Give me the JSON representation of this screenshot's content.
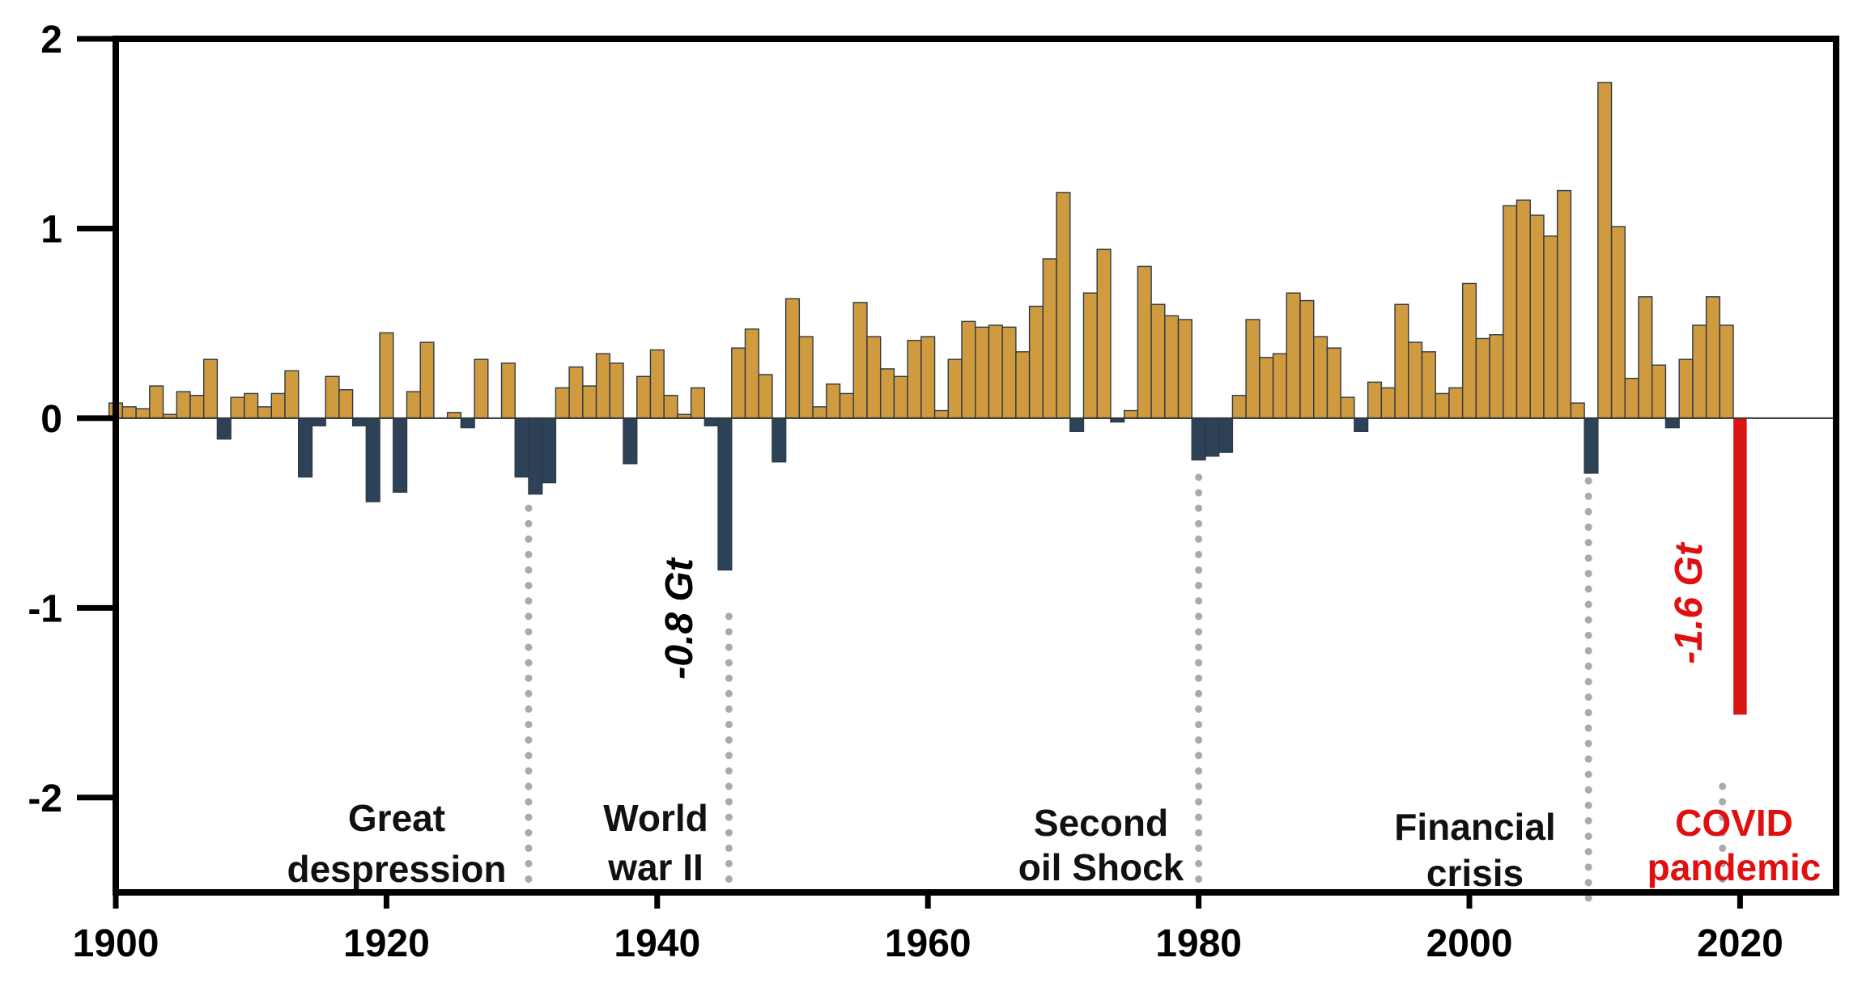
{
  "chart_data": {
    "type": "bar",
    "title": "",
    "xlabel": "",
    "ylabel": "",
    "xlim": [
      1900,
      2027
    ],
    "ylim": [
      -2.5,
      2
    ],
    "x_ticks": [
      "1900",
      "1920",
      "1940",
      "1960",
      "1980",
      "2000",
      "2020"
    ],
    "y_ticks": [
      "2",
      "1",
      "0",
      "-1",
      "-2"
    ],
    "grid": false,
    "colors": {
      "positive": "#d09a3e",
      "negative": "#2e4257",
      "covid": "#d81515",
      "outline": "#2a3a4a",
      "dotted_line": "#aaaaaa"
    },
    "x": [
      1900,
      1901,
      1902,
      1903,
      1904,
      1905,
      1906,
      1907,
      1908,
      1909,
      1910,
      1911,
      1912,
      1913,
      1914,
      1915,
      1916,
      1917,
      1918,
      1919,
      1920,
      1921,
      1922,
      1923,
      1924,
      1925,
      1926,
      1927,
      1928,
      1929,
      1930,
      1931,
      1932,
      1933,
      1934,
      1935,
      1936,
      1937,
      1938,
      1939,
      1940,
      1941,
      1942,
      1943,
      1944,
      1945,
      1946,
      1947,
      1948,
      1949,
      1950,
      1951,
      1952,
      1953,
      1954,
      1955,
      1956,
      1957,
      1958,
      1959,
      1960,
      1961,
      1962,
      1963,
      1964,
      1965,
      1966,
      1967,
      1968,
      1969,
      1970,
      1971,
      1972,
      1973,
      1974,
      1975,
      1976,
      1977,
      1978,
      1979,
      1980,
      1981,
      1982,
      1983,
      1984,
      1985,
      1986,
      1987,
      1988,
      1989,
      1990,
      1991,
      1992,
      1993,
      1994,
      1995,
      1996,
      1997,
      1998,
      1999,
      2000,
      2001,
      2002,
      2003,
      2004,
      2005,
      2006,
      2007,
      2008,
      2009,
      2010,
      2011,
      2012,
      2013,
      2014,
      2015,
      2016,
      2017,
      2018,
      2019,
      2020
    ],
    "values": [
      0.08,
      0.06,
      0.05,
      0.17,
      0.02,
      0.14,
      0.12,
      0.31,
      -0.11,
      0.11,
      0.13,
      0.06,
      0.13,
      0.25,
      -0.31,
      -0.04,
      0.22,
      0.15,
      -0.04,
      -0.44,
      0.45,
      -0.39,
      0.14,
      0.4,
      0.0,
      0.03,
      -0.05,
      0.31,
      0.0,
      0.29,
      -0.31,
      -0.4,
      -0.34,
      0.16,
      0.27,
      0.17,
      0.34,
      0.29,
      -0.24,
      0.22,
      0.36,
      0.12,
      0.02,
      0.16,
      -0.04,
      -0.8,
      0.37,
      0.47,
      0.23,
      -0.23,
      0.63,
      0.43,
      0.06,
      0.18,
      0.13,
      0.61,
      0.43,
      0.26,
      0.22,
      0.41,
      0.43,
      0.04,
      0.31,
      0.51,
      0.48,
      0.49,
      0.48,
      0.35,
      0.59,
      0.84,
      1.19,
      -0.07,
      0.66,
      0.89,
      -0.02,
      0.04,
      0.8,
      0.6,
      0.54,
      0.52,
      -0.22,
      -0.2,
      -0.18,
      0.12,
      0.52,
      0.32,
      0.34,
      0.66,
      0.62,
      0.43,
      0.37,
      0.11,
      -0.07,
      0.19,
      0.16,
      0.6,
      0.4,
      0.35,
      0.13,
      0.16,
      0.71,
      0.42,
      0.44,
      1.12,
      1.15,
      1.07,
      0.96,
      1.2,
      0.08,
      -0.29,
      1.77,
      1.01,
      0.21,
      0.64,
      0.28,
      -0.05,
      0.31,
      0.49,
      0.64,
      0.49,
      -1.56
    ]
  },
  "annotations": {
    "ww2_value": "-0.8 Gt",
    "covid_value": "-1.6 Gt"
  },
  "events": [
    {
      "id": "great-depression",
      "lines": [
        "Great",
        "despression"
      ],
      "color": "#111111",
      "year": 1930.5,
      "line_bottom": -2.43,
      "line_top": -0.4
    },
    {
      "id": "world-war-2",
      "lines": [
        "World",
        "war II"
      ],
      "color": "#111111",
      "year": 1945.3,
      "line_bottom": -2.43,
      "line_top": -0.98
    },
    {
      "id": "second-oil-shock",
      "lines": [
        "Second",
        "oil Shock"
      ],
      "color": "#111111",
      "year": 1980,
      "line_bottom": -2.43,
      "line_top": -0.3
    },
    {
      "id": "financial-crisis",
      "lines": [
        "Financial",
        "crisis"
      ],
      "color": "#111111",
      "year": 2008.8,
      "line_bottom": -2.53,
      "line_top": -0.26
    },
    {
      "id": "covid-pandemic",
      "lines": [
        "COVID",
        "pandemic"
      ],
      "color": "#e01010",
      "year": 2018.7,
      "line_bottom": -2.43,
      "line_top": -1.93
    }
  ]
}
